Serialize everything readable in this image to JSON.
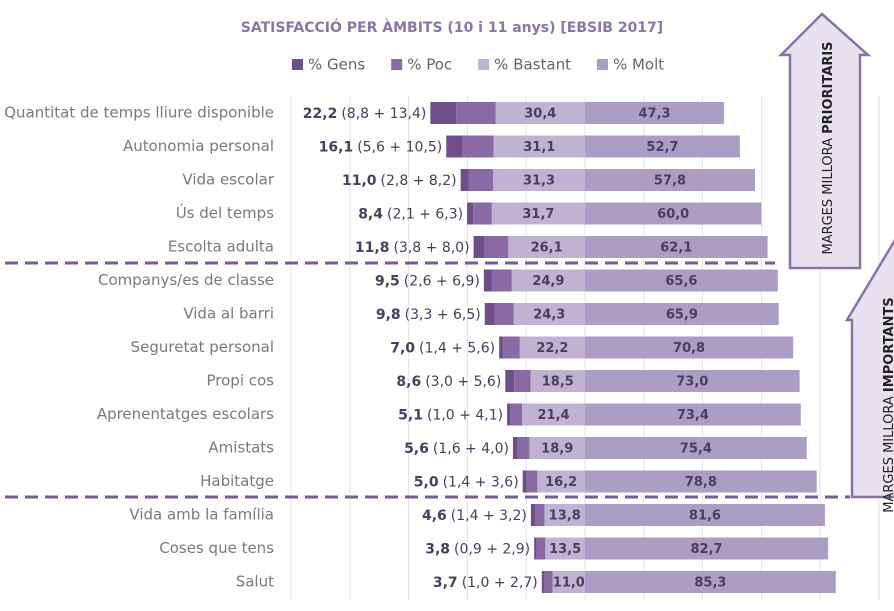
{
  "chart_data": {
    "type": "diverging_bar",
    "title": "SATISFACCIÓ PER ÀMBITS (10 i 11 anys) [EBSIB 2017]",
    "categories": [
      "Quantitat de temps lliure disponible",
      "Autonomia personal",
      "Vida escolar",
      "Ús del temps",
      "Escolta adulta",
      "Companys/es de classe",
      "Vida al barri",
      "Seguretat personal",
      "Propi cos",
      "Aprenentatges escolars",
      "Amistats",
      "Habitatge",
      "Vida amb la família",
      "Coses que tens",
      "Salut"
    ],
    "series": [
      {
        "name": "% Gens",
        "color": "#6f4f8a",
        "side": "left",
        "values": [
          8.8,
          5.6,
          2.8,
          2.1,
          3.8,
          2.6,
          3.3,
          1.4,
          3.0,
          1.0,
          1.6,
          1.4,
          1.4,
          0.9,
          1.0
        ]
      },
      {
        "name": "% Poc",
        "color": "#8a6aa4",
        "side": "left",
        "values": [
          13.4,
          10.5,
          8.2,
          6.3,
          8.0,
          6.9,
          6.5,
          5.6,
          5.6,
          4.1,
          4.0,
          3.6,
          3.2,
          2.9,
          2.7
        ]
      },
      {
        "name": "% Bastant",
        "color": "#c0b3d2",
        "side": "left",
        "values": [
          30.4,
          31.1,
          31.3,
          31.7,
          26.1,
          24.9,
          24.3,
          22.2,
          18.5,
          21.4,
          18.9,
          16.2,
          13.8,
          13.5,
          11.0
        ],
        "value_labels": [
          "30,4",
          "31,1",
          "31,3",
          "31,7",
          "26,1",
          "24,9",
          "24,3",
          "22,2",
          "18,5",
          "21,4",
          "18,9",
          "16,2",
          "13,8",
          "13,5",
          "11,0"
        ]
      },
      {
        "name": "% Molt",
        "color": "#ac9dc5",
        "side": "right",
        "values": [
          47.3,
          52.7,
          57.8,
          60.0,
          62.1,
          65.6,
          65.9,
          70.8,
          73.0,
          73.4,
          75.4,
          78.8,
          81.6,
          82.7,
          85.3
        ],
        "value_labels": [
          "47,3",
          "52,7",
          "57,8",
          "60,0",
          "62,1",
          "65,6",
          "65,9",
          "70,8",
          "73,0",
          "73,4",
          "75,4",
          "78,8",
          "81,6",
          "82,7",
          "85,3"
        ]
      }
    ],
    "left_total_labels": [
      "22,2",
      "16,1",
      "11,0",
      "8,4",
      "11,8",
      "9,5",
      "9,8",
      "7,0",
      "8,6",
      "5,1",
      "5,6",
      "5,0",
      "4,6",
      "3,8",
      "3,7"
    ],
    "left_details": [
      "(8,8 + 13,4)",
      "(5,6 + 10,5)",
      "(2,8 + 8,2)",
      "(2,1 + 6,3)",
      "(3,8 + 8,0)",
      "(2,6 + 6,9)",
      "(3,3 + 6,5)",
      "(1,4 + 5,6)",
      "(3,0 + 5,6)",
      "(1,0 + 4,1)",
      "(1,6 + 4,0)",
      "(1,4 + 3,6)",
      "(1,4 + 3,2)",
      "(0,9 + 2,9)",
      "(1,0 + 2,7)"
    ],
    "xlim": [
      -100,
      100
    ],
    "xticks": [
      -100,
      -80,
      -60,
      -40,
      -20,
      0,
      20,
      40,
      60,
      80,
      100
    ],
    "grid": true,
    "legend": "top",
    "annotations": [
      {
        "text": "MARGES MILLORA ",
        "bold": "PRIORITARIS"
      },
      {
        "text": "MARGES MILLORA ",
        "bold": "IMPORTANTS"
      }
    ]
  }
}
